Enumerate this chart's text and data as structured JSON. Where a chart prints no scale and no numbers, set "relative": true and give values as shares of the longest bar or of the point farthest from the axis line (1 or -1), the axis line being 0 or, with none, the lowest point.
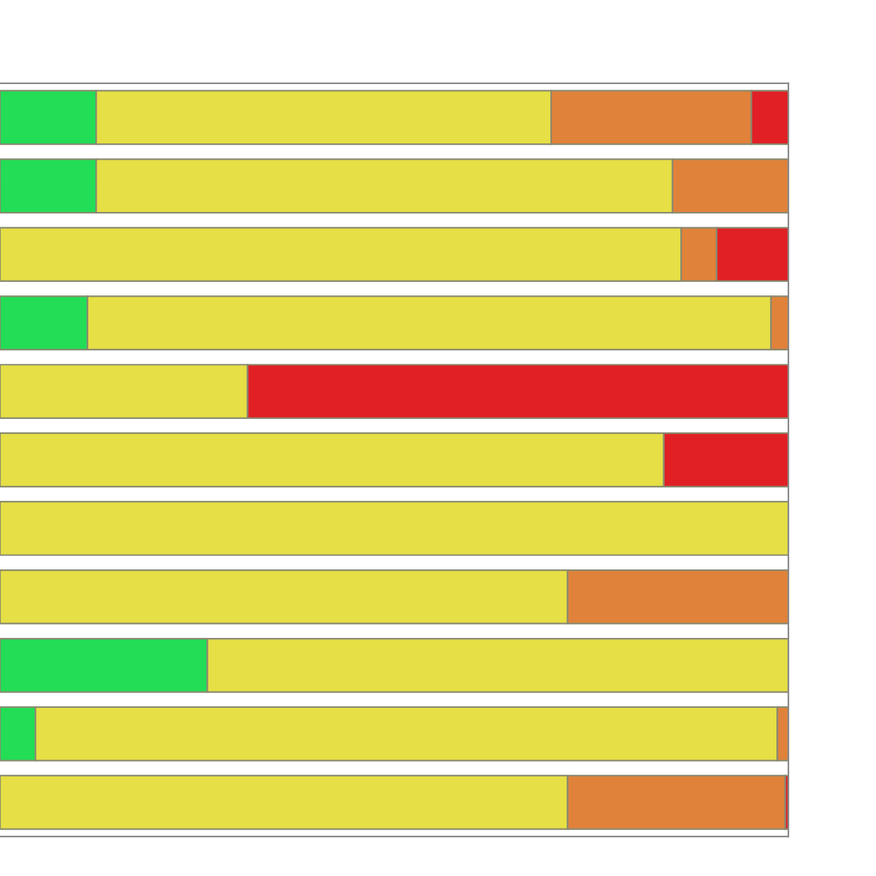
{
  "chart_data": {
    "type": "bar",
    "orientation": "horizontal",
    "stacked": true,
    "relative": true,
    "categories": [
      null,
      null,
      null,
      null,
      null,
      null,
      null,
      null,
      null,
      null,
      null
    ],
    "series": [
      {
        "color": "#22dd55",
        "values": [
          0.122,
          0.122,
          0,
          0.111,
          0,
          0,
          0,
          0,
          0.263,
          0.045,
          0
        ]
      },
      {
        "color": "#e6df45",
        "values": [
          0.577,
          0.731,
          0.864,
          0.867,
          0.314,
          0.842,
          1,
          0.72,
          0.737,
          0.941,
          0.72
        ]
      },
      {
        "color": "#e0823a",
        "values": [
          0.254,
          0.147,
          0.045,
          0.022,
          0,
          0,
          0,
          0.28,
          0,
          0.014,
          0.276
        ]
      },
      {
        "color": "#e02025",
        "values": [
          0.047,
          0,
          0.091,
          0,
          0.686,
          0.158,
          0,
          0,
          0,
          0,
          0.004
        ]
      }
    ],
    "legend": false
  }
}
